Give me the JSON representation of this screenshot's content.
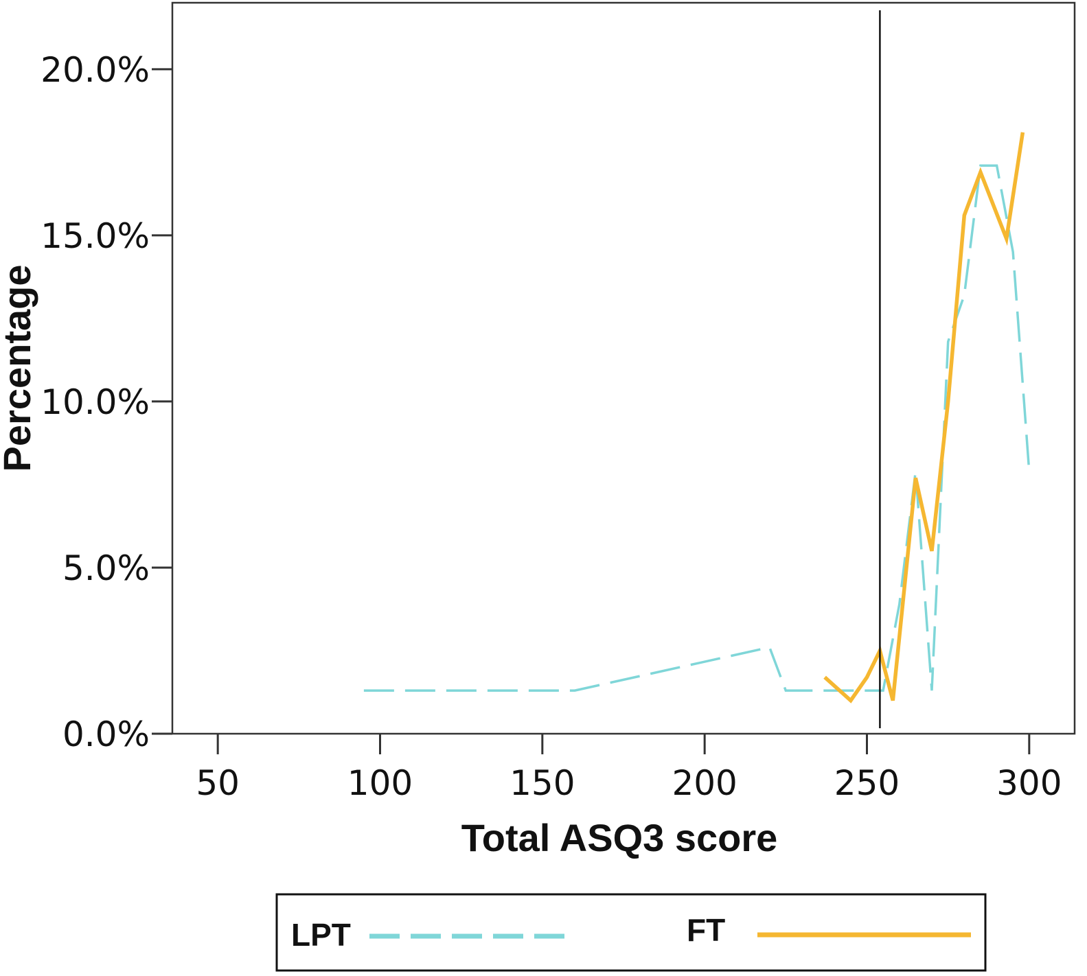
{
  "chart_data": {
    "type": "line",
    "title": "",
    "xlabel": "Total ASQ3 score",
    "ylabel": "Percentage",
    "xlim": [
      36,
      314
    ],
    "ylim": [
      0,
      22.0
    ],
    "x_ticks": [
      50,
      100,
      150,
      200,
      250,
      300
    ],
    "x_tick_labels": [
      "50",
      "100",
      "150",
      "200",
      "250",
      "300"
    ],
    "y_ticks": [
      0,
      5,
      10,
      15,
      20
    ],
    "y_tick_labels": [
      "0.0%",
      "5.0%",
      "10.0%",
      "15.0%",
      "20.0%"
    ],
    "reference_line_x": 254,
    "grid": false,
    "legend_position": "bottom",
    "series": [
      {
        "name": "LPT",
        "style": "dashed",
        "color": "#7fd6d8",
        "x": [
          95,
          160,
          220,
          225,
          255,
          260,
          265,
          270,
          275,
          280,
          285,
          290,
          295,
          300
        ],
        "y": [
          1.3,
          1.3,
          2.6,
          1.3,
          1.3,
          3.9,
          7.9,
          1.3,
          11.8,
          13.2,
          17.1,
          17.1,
          14.5,
          7.9
        ]
      },
      {
        "name": "FT",
        "style": "solid",
        "color": "#f5b731",
        "x": [
          237,
          245,
          250,
          254,
          258,
          265,
          270,
          275,
          280,
          285,
          293,
          298
        ],
        "y": [
          1.7,
          1.0,
          1.7,
          2.5,
          1.0,
          7.7,
          5.5,
          10.0,
          15.6,
          16.9,
          14.9,
          18.1
        ]
      }
    ]
  }
}
